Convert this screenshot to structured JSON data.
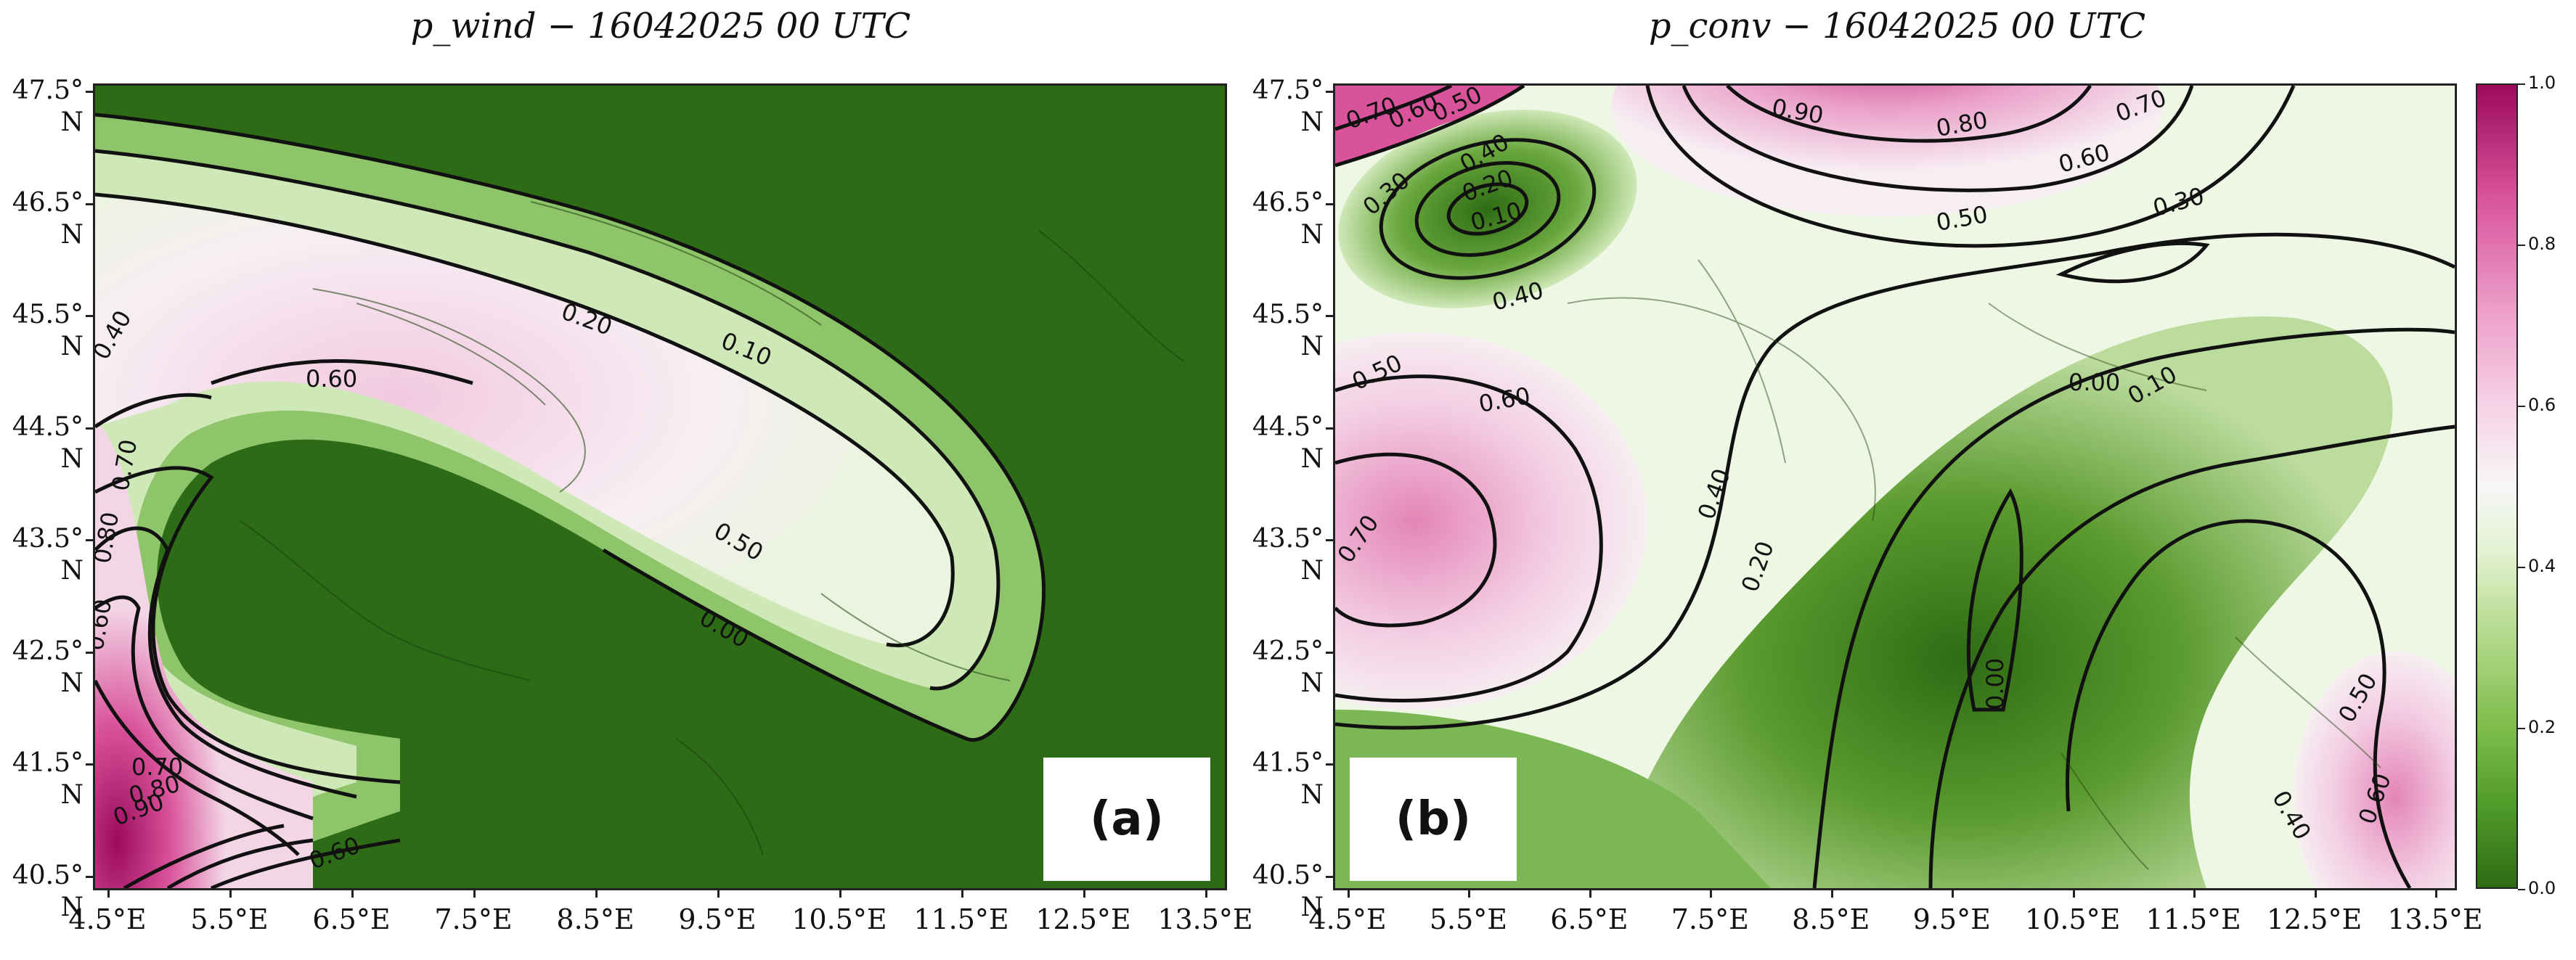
{
  "panels": {
    "a": {
      "title": "p_wind − 16042025 00 UTC",
      "badge": "(a)",
      "contour_labels": [
        "0.20",
        "0.10",
        "0.40",
        "0.60",
        "0.50",
        "0.00",
        "0.80",
        "0.70",
        "0.60",
        "0.90",
        "0.80",
        "0.70",
        "0.60"
      ]
    },
    "b": {
      "title": "p_conv − 16042025 00 UTC",
      "badge": "(b)",
      "contour_labels": [
        "0.70",
        "0.60",
        "0.50",
        "0.40",
        "0.30",
        "0.20",
        "0.10",
        "0.90",
        "0.80",
        "0.70",
        "0.60",
        "0.50",
        "0.30",
        "0.40",
        "0.50",
        "0.60",
        "0.00",
        "0.10",
        "0.40",
        "0.20",
        "0.00",
        "0.70",
        "0.50",
        "0.60",
        "0.40"
      ]
    }
  },
  "axes": {
    "lat_ticks": [
      "47.5°\nN",
      "46.5°\nN",
      "45.5°\nN",
      "44.5°\nN",
      "43.5°\nN",
      "42.5°\nN",
      "41.5°\nN",
      "40.5°\nN"
    ],
    "lon_ticks": [
      "4.5°E",
      "5.5°E",
      "6.5°E",
      "7.5°E",
      "8.5°E",
      "9.5°E",
      "10.5°E",
      "11.5°E",
      "12.5°E",
      "13.5°E"
    ]
  },
  "colorbar": {
    "ticks": [
      "1.0",
      "0.8",
      "0.6",
      "0.4",
      "0.2",
      "0.0"
    ],
    "range": [
      0.0,
      1.0
    ],
    "colors": {
      "low": "#2f6b14",
      "mid": "#f7f7f7",
      "high": "#9b0b5c"
    }
  }
}
